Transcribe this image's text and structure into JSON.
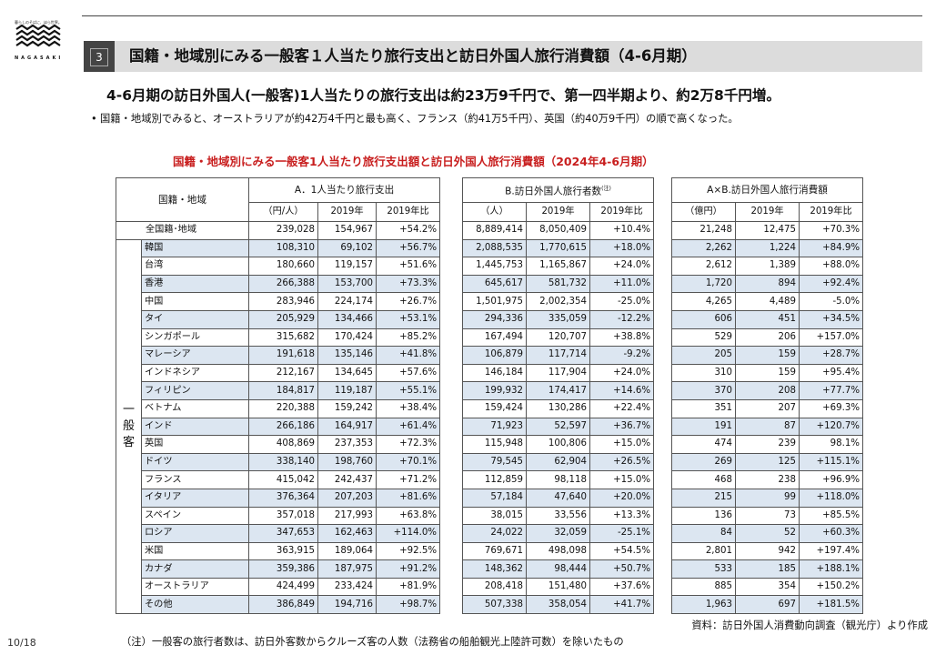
{
  "logo": {
    "tagline": "暮らしのそばに、ほら世界。",
    "brand": "NAGASAKI"
  },
  "section": {
    "number": "3",
    "title": "国籍・地域別にみる一般客１人当たり旅行支出と訪日外国人旅行消費額（4-6月期）"
  },
  "headline": "4-6月期の訪日外国人(一般客)1人当たりの旅行支出は約23万9千円で、第一四半期より、約2万8千円増。",
  "bullet": "国籍・地域別でみると、オーストラリアが約42万4千円と最も高く、フランス（約41万5千円）、英国（約40万9千円）の順で高くなった。",
  "table_title": "国籍・地域別にみる一般客1人当たり旅行支出額と訪日外国人旅行消費額（2024年4-6月期）",
  "table": {
    "header_region": "国籍・地域",
    "group_label": [
      "一",
      "般",
      "客"
    ],
    "A": {
      "title": "A．1人当たり旅行支出",
      "unit": "（円/人）",
      "col2019": "2019年",
      "colratio": "2019年比"
    },
    "B": {
      "title": "B.訪日外国人旅行者数",
      "note_mark": "(注)",
      "unit": "（人）",
      "col2019": "2019年",
      "colratio": "2019年比"
    },
    "C": {
      "title": "A×B.訪日外国人旅行消費額",
      "unit": "（億円）",
      "col2019": "2019年",
      "colratio": "2019年比"
    },
    "rows": [
      {
        "name": "全国籍･地域",
        "a": "239,028",
        "a19": "154,967",
        "ar": "+54.2%",
        "b": "8,889,414",
        "b19": "8,050,409",
        "br": "+10.4%",
        "c": "21,248",
        "c19": "12,475",
        "cr": "+70.3%",
        "shade": false
      },
      {
        "name": "韓国",
        "a": "108,310",
        "a19": "69,102",
        "ar": "+56.7%",
        "b": "2,088,535",
        "b19": "1,770,615",
        "br": "+18.0%",
        "c": "2,262",
        "c19": "1,224",
        "cr": "+84.9%",
        "shade": true
      },
      {
        "name": "台湾",
        "a": "180,660",
        "a19": "119,157",
        "ar": "+51.6%",
        "b": "1,445,753",
        "b19": "1,165,867",
        "br": "+24.0%",
        "c": "2,612",
        "c19": "1,389",
        "cr": "+88.0%",
        "shade": false
      },
      {
        "name": "香港",
        "a": "266,388",
        "a19": "153,700",
        "ar": "+73.3%",
        "b": "645,617",
        "b19": "581,732",
        "br": "+11.0%",
        "c": "1,720",
        "c19": "894",
        "cr": "+92.4%",
        "shade": true
      },
      {
        "name": "中国",
        "a": "283,946",
        "a19": "224,174",
        "ar": "+26.7%",
        "b": "1,501,975",
        "b19": "2,002,354",
        "br": "-25.0%",
        "c": "4,265",
        "c19": "4,489",
        "cr": "-5.0%",
        "shade": false
      },
      {
        "name": "タイ",
        "a": "205,929",
        "a19": "134,466",
        "ar": "+53.1%",
        "b": "294,336",
        "b19": "335,059",
        "br": "-12.2%",
        "c": "606",
        "c19": "451",
        "cr": "+34.5%",
        "shade": true
      },
      {
        "name": "シンガポール",
        "a": "315,682",
        "a19": "170,424",
        "ar": "+85.2%",
        "b": "167,494",
        "b19": "120,707",
        "br": "+38.8%",
        "c": "529",
        "c19": "206",
        "cr": "+157.0%",
        "shade": false
      },
      {
        "name": "マレーシア",
        "a": "191,618",
        "a19": "135,146",
        "ar": "+41.8%",
        "b": "106,879",
        "b19": "117,714",
        "br": "-9.2%",
        "c": "205",
        "c19": "159",
        "cr": "+28.7%",
        "shade": true
      },
      {
        "name": "インドネシア",
        "a": "212,167",
        "a19": "134,645",
        "ar": "+57.6%",
        "b": "146,184",
        "b19": "117,904",
        "br": "+24.0%",
        "c": "310",
        "c19": "159",
        "cr": "+95.4%",
        "shade": false
      },
      {
        "name": "フィリピン",
        "a": "184,817",
        "a19": "119,187",
        "ar": "+55.1%",
        "b": "199,932",
        "b19": "174,417",
        "br": "+14.6%",
        "c": "370",
        "c19": "208",
        "cr": "+77.7%",
        "shade": true
      },
      {
        "name": "ベトナム",
        "a": "220,388",
        "a19": "159,242",
        "ar": "+38.4%",
        "b": "159,424",
        "b19": "130,286",
        "br": "+22.4%",
        "c": "351",
        "c19": "207",
        "cr": "+69.3%",
        "shade": false
      },
      {
        "name": "インド",
        "a": "266,186",
        "a19": "164,917",
        "ar": "+61.4%",
        "b": "71,923",
        "b19": "52,597",
        "br": "+36.7%",
        "c": "191",
        "c19": "87",
        "cr": "+120.7%",
        "shade": true
      },
      {
        "name": "英国",
        "a": "408,869",
        "a19": "237,353",
        "ar": "+72.3%",
        "b": "115,948",
        "b19": "100,806",
        "br": "+15.0%",
        "c": "474",
        "c19": "239",
        "cr": "98.1%",
        "shade": false
      },
      {
        "name": "ドイツ",
        "a": "338,140",
        "a19": "198,760",
        "ar": "+70.1%",
        "b": "79,545",
        "b19": "62,904",
        "br": "+26.5%",
        "c": "269",
        "c19": "125",
        "cr": "+115.1%",
        "shade": true
      },
      {
        "name": "フランス",
        "a": "415,042",
        "a19": "242,437",
        "ar": "+71.2%",
        "b": "112,859",
        "b19": "98,118",
        "br": "+15.0%",
        "c": "468",
        "c19": "238",
        "cr": "+96.9%",
        "shade": false
      },
      {
        "name": "イタリア",
        "a": "376,364",
        "a19": "207,203",
        "ar": "+81.6%",
        "b": "57,184",
        "b19": "47,640",
        "br": "+20.0%",
        "c": "215",
        "c19": "99",
        "cr": "+118.0%",
        "shade": true
      },
      {
        "name": "スペイン",
        "a": "357,018",
        "a19": "217,993",
        "ar": "+63.8%",
        "b": "38,015",
        "b19": "33,556",
        "br": "+13.3%",
        "c": "136",
        "c19": "73",
        "cr": "+85.5%",
        "shade": false
      },
      {
        "name": "ロシア",
        "a": "347,653",
        "a19": "162,463",
        "ar": "+114.0%",
        "b": "24,022",
        "b19": "32,059",
        "br": "-25.1%",
        "c": "84",
        "c19": "52",
        "cr": "+60.3%",
        "shade": true
      },
      {
        "name": "米国",
        "a": "363,915",
        "a19": "189,064",
        "ar": "+92.5%",
        "b": "769,671",
        "b19": "498,098",
        "br": "+54.5%",
        "c": "2,801",
        "c19": "942",
        "cr": "+197.4%",
        "shade": false
      },
      {
        "name": "カナダ",
        "a": "359,386",
        "a19": "187,975",
        "ar": "+91.2%",
        "b": "148,362",
        "b19": "98,444",
        "br": "+50.7%",
        "c": "533",
        "c19": "185",
        "cr": "+188.1%",
        "shade": true
      },
      {
        "name": "オーストラリア",
        "a": "424,499",
        "a19": "233,424",
        "ar": "+81.9%",
        "b": "208,418",
        "b19": "151,480",
        "br": "+37.6%",
        "c": "885",
        "c19": "354",
        "cr": "+150.2%",
        "shade": false
      },
      {
        "name": "その他",
        "a": "386,849",
        "a19": "194,716",
        "ar": "+98.7%",
        "b": "507,338",
        "b19": "358,054",
        "br": "+41.7%",
        "c": "1,963",
        "c19": "697",
        "cr": "+181.5%",
        "shade": true
      }
    ]
  },
  "footer": {
    "source": "資料：訪日外国人消費動向調査（観光庁）より作成",
    "note": "（注）一般客の旅行者数は、訪日外客数からクルーズ客の人数（法務省の船舶観光上陸許可数）を除いたもの"
  },
  "page": "10/18"
}
